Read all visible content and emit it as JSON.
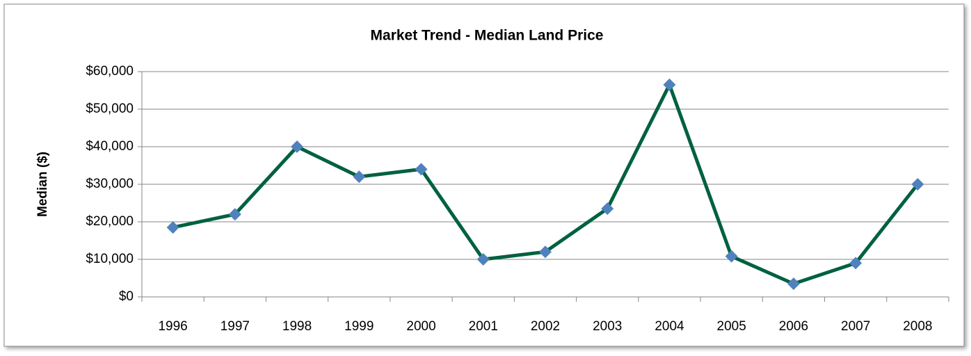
{
  "chart_data": {
    "type": "line",
    "title": "Market Trend - Median  Land Price",
    "y_label": "Median ($)",
    "categories": [
      "1996",
      "1997",
      "1998",
      "1999",
      "2000",
      "2001",
      "2002",
      "2003",
      "2004",
      "2005",
      "2006",
      "2007",
      "2008"
    ],
    "series": [
      {
        "name": "Median",
        "color": "#00613f",
        "marker_color": "#4f81bd",
        "values": [
          18500,
          22000,
          40000,
          32000,
          34000,
          10000,
          12000,
          23500,
          56500,
          10800,
          3500,
          9000,
          30000
        ]
      }
    ],
    "ylim": [
      0,
      60000
    ],
    "yticks": [
      {
        "value": 0,
        "label": "$0"
      },
      {
        "value": 10000,
        "label": "$10,000"
      },
      {
        "value": 20000,
        "label": "$20,000"
      },
      {
        "value": 30000,
        "label": "$30,000"
      },
      {
        "value": 40000,
        "label": "$40,000"
      },
      {
        "value": 50000,
        "label": "$50,000"
      },
      {
        "value": 60000,
        "label": "$60,000"
      }
    ],
    "grid": true
  }
}
